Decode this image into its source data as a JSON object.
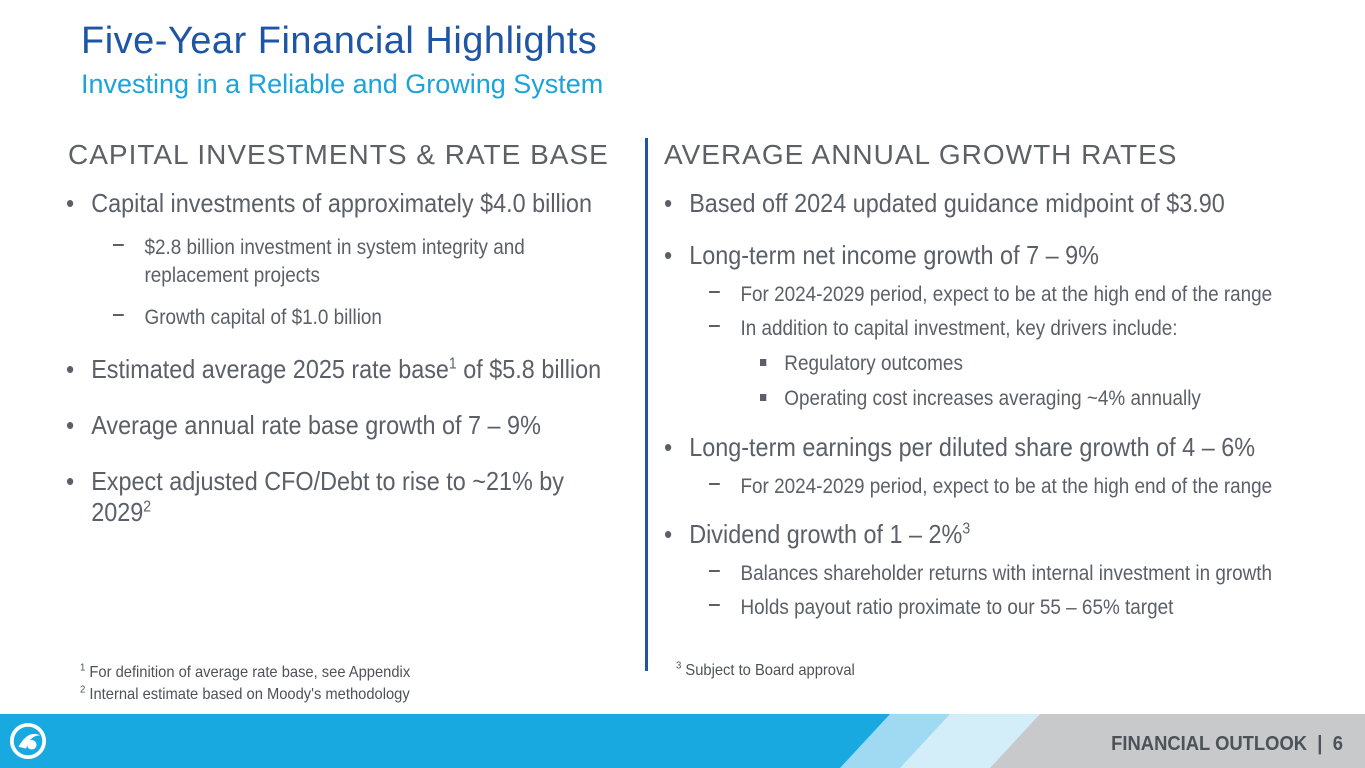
{
  "title": "Five-Year Financial Highlights",
  "subtitle": "Investing in a Reliable and Growing System",
  "left": {
    "heading": "CAPITAL INVESTMENTS & RATE BASE",
    "bullets": [
      {
        "text": "Capital investments of approximately $4.0 billion",
        "subs": [
          "$2.8 billion investment in system integrity and",
          "replacement projects",
          "Growth capital of $1.0 billion"
        ]
      },
      {
        "text_a": "Estimated average 2025 rate base",
        "sup": "1",
        "text_b": " of $5.8 billion"
      },
      {
        "text": "Average annual rate base growth of 7 – 9%"
      },
      {
        "text_a": "Expect adjusted CFO/Debt to rise to ~21% by",
        "text_b": "2029",
        "sup": "2"
      }
    ],
    "footnotes": [
      {
        "num": "1",
        "text": " For definition of average rate base, see Appendix"
      },
      {
        "num": "2",
        "text": " Internal estimate based on Moody's methodology"
      }
    ]
  },
  "right": {
    "heading": "AVERAGE ANNUAL GROWTH RATES",
    "bullets": [
      {
        "text": "Based off 2024 updated guidance midpoint of $3.90"
      },
      {
        "text": "Long-term net income growth of 7 – 9%",
        "subs": [
          "For 2024-2029 period, expect to be at the high end of the range",
          "In addition to capital investment, key drivers include:"
        ],
        "subsubs": [
          "Regulatory outcomes",
          "Operating cost increases averaging ~4% annually"
        ]
      },
      {
        "text": "Long-term earnings per diluted share growth of 4 – 6%",
        "subs": [
          "For 2024-2029 period, expect to be at the high end of the range"
        ]
      },
      {
        "text": "Dividend growth of 1 – 2%",
        "sup": "3",
        "subs": [
          "Balances shareholder returns with internal investment in growth",
          "Holds payout ratio proximate to our 55 – 65% target"
        ]
      }
    ],
    "footnote": {
      "num": "3",
      "text": " Subject to Board approval"
    }
  },
  "footer": {
    "section": "FINANCIAL OUTLOOK",
    "separator": "|",
    "page": "6"
  },
  "colors": {
    "title": "#1f55a5",
    "subtitle": "#1ba3dc",
    "footer_blue": "#17a9df",
    "footer_gray": "#c8c9cb",
    "divider": "#1f55a5"
  },
  "icons": [
    "bullet-dot",
    "dash-bullet",
    "square-bullet",
    "company-logo-icon"
  ]
}
